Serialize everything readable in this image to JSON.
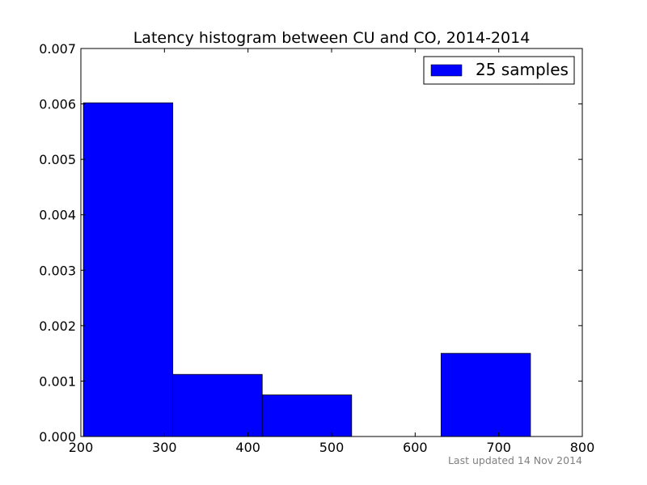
{
  "chart_data": {
    "type": "bar",
    "title": "Latency histogram between CU and CO, 2014-2014",
    "xlabel": "",
    "ylabel": "",
    "xlim": [
      200,
      800
    ],
    "ylim": [
      0,
      0.007
    ],
    "xticks": [
      "200",
      "300",
      "400",
      "500",
      "600",
      "700",
      "800"
    ],
    "yticks": [
      "0.000",
      "0.001",
      "0.002",
      "0.003",
      "0.004",
      "0.005",
      "0.006",
      "0.007"
    ],
    "bins": [
      {
        "start": 203,
        "end": 310,
        "value": 0.00602
      },
      {
        "start": 310,
        "end": 417,
        "value": 0.00112
      },
      {
        "start": 417,
        "end": 524,
        "value": 0.00075
      },
      {
        "start": 524,
        "end": 631,
        "value": 0.0
      },
      {
        "start": 631,
        "end": 738,
        "value": 0.0015
      }
    ],
    "series": [
      {
        "name": "25 samples",
        "color": "#0000ff"
      }
    ],
    "legend_position": "top-right",
    "grid": false
  },
  "footer": {
    "updated_text": "Last updated 14 Nov 2014"
  },
  "colors": {
    "bar_fill": "#0000ff",
    "axes": "#000000",
    "footer_text": "#808080"
  }
}
